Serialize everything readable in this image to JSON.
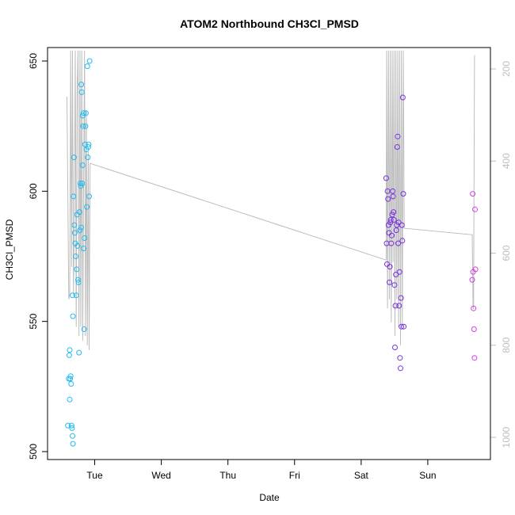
{
  "chart_data": {
    "type": "scatter",
    "title": "ATOM2 Northbound CH3Cl_PMSD",
    "xlabel": "Date",
    "ylabel": "CH3Cl_PMSD",
    "x_ticks": [
      "Tue",
      "Wed",
      "Thu",
      "Fri",
      "Sat",
      "Sun"
    ],
    "xlim": [
      "Mon 13:00",
      "Sun 22:00"
    ],
    "ylim": [
      500,
      650
    ],
    "y_ticks": [
      500,
      550,
      600,
      650
    ],
    "secondary_y": {
      "ticks": [
        200,
        400,
        600,
        800,
        1000
      ],
      "range_top_to_bottom": [
        160,
        1040
      ],
      "inverted": true,
      "color": "#bdbdbd"
    },
    "grid": false,
    "colors": {
      "segment1": "#22bbee",
      "segment2": "#7733dd",
      "segment3": "#cc44dd",
      "line": "#bdbdbd"
    },
    "series": [
      {
        "color": "#22bbee",
        "points": [
          [
            "Mon 14:20",
            510
          ],
          [
            "Mon 14:40",
            528
          ],
          [
            "Mon 14:50",
            537
          ],
          [
            "Mon 15:00",
            539
          ],
          [
            "Mon 15:00",
            520
          ],
          [
            "Mon 15:10",
            528
          ],
          [
            "Mon 15:20",
            529
          ],
          [
            "Mon 15:30",
            526
          ],
          [
            "Mon 15:40",
            510
          ],
          [
            "Mon 15:50",
            509
          ],
          [
            "Mon 16:00",
            506
          ],
          [
            "Mon 16:10",
            503
          ],
          [
            "Mon 16:00",
            560
          ],
          [
            "Mon 16:10",
            552
          ],
          [
            "Mon 16:20",
            598
          ],
          [
            "Mon 16:30",
            613
          ],
          [
            "Mon 16:40",
            587
          ],
          [
            "Mon 16:50",
            584
          ],
          [
            "Mon 17:00",
            580
          ],
          [
            "Mon 17:10",
            575
          ],
          [
            "Mon 17:20",
            560
          ],
          [
            "Mon 17:30",
            570
          ],
          [
            "Mon 17:40",
            591
          ],
          [
            "Mon 17:50",
            579
          ],
          [
            "Mon 18:00",
            566
          ],
          [
            "Mon 18:10",
            565
          ],
          [
            "Mon 18:20",
            538
          ],
          [
            "Mon 18:30",
            592
          ],
          [
            "Mon 18:40",
            585
          ],
          [
            "Mon 18:50",
            603
          ],
          [
            "Mon 19:00",
            602
          ],
          [
            "Mon 19:10",
            586
          ],
          [
            "Mon 19:10",
            641
          ],
          [
            "Mon 19:20",
            638
          ],
          [
            "Mon 19:30",
            603
          ],
          [
            "Mon 19:40",
            629
          ],
          [
            "Mon 19:40",
            610
          ],
          [
            "Mon 19:50",
            625
          ],
          [
            "Mon 20:00",
            578
          ],
          [
            "Mon 20:00",
            630
          ],
          [
            "Mon 20:10",
            547
          ],
          [
            "Mon 20:20",
            582
          ],
          [
            "Mon 20:30",
            618
          ],
          [
            "Mon 20:40",
            625
          ],
          [
            "Mon 20:50",
            630
          ],
          [
            "Mon 21:00",
            616
          ],
          [
            "Mon 21:10",
            594
          ],
          [
            "Mon 21:20",
            648
          ],
          [
            "Mon 21:30",
            613
          ],
          [
            "Mon 21:40",
            617
          ],
          [
            "Mon 21:50",
            618
          ],
          [
            "Mon 22:00",
            598
          ],
          [
            "Mon 22:10",
            650
          ]
        ]
      },
      {
        "color": "#7733dd",
        "points": [
          [
            "Sat 09:00",
            605
          ],
          [
            "Sat 09:10",
            580
          ],
          [
            "Sat 09:20",
            572
          ],
          [
            "Sat 09:30",
            600
          ],
          [
            "Sat 09:40",
            597
          ],
          [
            "Sat 09:50",
            587
          ],
          [
            "Sat 10:00",
            584
          ],
          [
            "Sat 10:10",
            565
          ],
          [
            "Sat 10:20",
            571
          ],
          [
            "Sat 10:30",
            588
          ],
          [
            "Sat 10:40",
            589
          ],
          [
            "Sat 10:50",
            580
          ],
          [
            "Sat 11:00",
            583
          ],
          [
            "Sat 11:10",
            591
          ],
          [
            "Sat 11:20",
            600
          ],
          [
            "Sat 11:30",
            598
          ],
          [
            "Sat 11:40",
            592
          ],
          [
            "Sat 11:50",
            589
          ],
          [
            "Sat 12:00",
            564
          ],
          [
            "Sat 12:10",
            540
          ],
          [
            "Sat 12:20",
            556
          ],
          [
            "Sat 12:30",
            568
          ],
          [
            "Sat 12:40",
            585
          ],
          [
            "Sat 12:50",
            587
          ],
          [
            "Sat 13:00",
            617
          ],
          [
            "Sat 13:10",
            621
          ],
          [
            "Sat 13:20",
            580
          ],
          [
            "Sat 13:30",
            588
          ],
          [
            "Sat 13:40",
            556
          ],
          [
            "Sat 13:50",
            569
          ],
          [
            "Sat 14:00",
            536
          ],
          [
            "Sat 14:10",
            532
          ],
          [
            "Sat 14:20",
            559
          ],
          [
            "Sat 14:30",
            548
          ],
          [
            "Sat 14:40",
            587
          ],
          [
            "Sat 14:50",
            581
          ],
          [
            "Sat 15:00",
            636
          ],
          [
            "Sat 15:10",
            599
          ],
          [
            "Sat 15:20",
            548
          ]
        ]
      },
      {
        "color": "#cc44dd",
        "points": [
          [
            "Sun 16:00",
            566
          ],
          [
            "Sun 16:10",
            599
          ],
          [
            "Sun 16:20",
            569
          ],
          [
            "Sun 16:30",
            555
          ],
          [
            "Sun 16:40",
            547
          ],
          [
            "Sun 16:50",
            536
          ],
          [
            "Sun 17:00",
            593
          ],
          [
            "Sun 17:10",
            570
          ]
        ]
      }
    ],
    "line_series": {
      "color": "#bdbdbd",
      "axis": "secondary",
      "points": [
        [
          "Mon 14:00",
          260
        ],
        [
          "Mon 14:40",
          700
        ],
        [
          "Mon 15:00",
          690
        ],
        [
          "Mon 15:20",
          160
        ],
        [
          "Mon 15:40",
          630
        ],
        [
          "Mon 16:00",
          160
        ],
        [
          "Mon 16:20",
          690
        ],
        [
          "Mon 16:40",
          520
        ],
        [
          "Mon 17:00",
          160
        ],
        [
          "Mon 17:20",
          760
        ],
        [
          "Mon 17:40",
          250
        ],
        [
          "Mon 18:00",
          160
        ],
        [
          "Mon 18:20",
          780
        ],
        [
          "Mon 18:40",
          160
        ],
        [
          "Mon 19:00",
          760
        ],
        [
          "Mon 19:20",
          160
        ],
        [
          "Mon 19:40",
          790
        ],
        [
          "Mon 20:00",
          460
        ],
        [
          "Mon 20:20",
          160
        ],
        [
          "Mon 20:40",
          780
        ],
        [
          "Mon 21:00",
          290
        ],
        [
          "Mon 21:20",
          800
        ],
        [
          "Mon 21:40",
          380
        ],
        [
          "Mon 22:00",
          810
        ],
        [
          "Mon 22:20",
          405
        ],
        [
          "Sat 09:00",
          615
        ],
        [
          "Sat 09:10",
          160
        ],
        [
          "Sat 09:30",
          720
        ],
        [
          "Sat 09:50",
          160
        ],
        [
          "Sat 10:10",
          700
        ],
        [
          "Sat 10:30",
          160
        ],
        [
          "Sat 10:50",
          750
        ],
        [
          "Sat 11:10",
          160
        ],
        [
          "Sat 11:30",
          620
        ],
        [
          "Sat 11:50",
          160
        ],
        [
          "Sat 12:10",
          780
        ],
        [
          "Sat 12:30",
          160
        ],
        [
          "Sat 12:50",
          700
        ],
        [
          "Sat 13:10",
          160
        ],
        [
          "Sat 13:30",
          760
        ],
        [
          "Sat 13:50",
          160
        ],
        [
          "Sat 14:10",
          800
        ],
        [
          "Sat 14:30",
          160
        ],
        [
          "Sat 14:50",
          760
        ],
        [
          "Sat 15:10",
          160
        ],
        [
          "Sat 15:30",
          546
        ],
        [
          "Sun 16:00",
          560
        ],
        [
          "Sun 16:20",
          720
        ],
        [
          "Sun 16:30",
          720
        ],
        [
          "Sun 16:50",
          170
        ]
      ]
    }
  }
}
